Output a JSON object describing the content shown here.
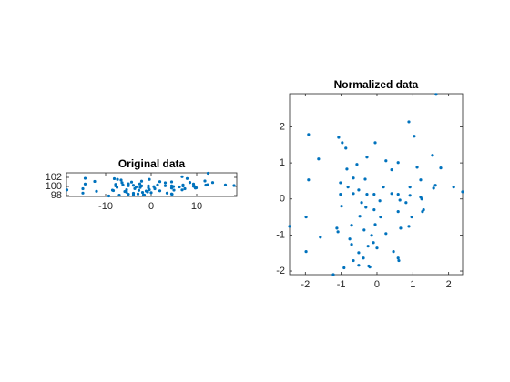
{
  "chart_data": [
    {
      "type": "scatter",
      "title": "Original data",
      "color": "#0072bd",
      "xlim": [
        -18.6,
        18.8
      ],
      "ylim": [
        97.8,
        103
      ],
      "xticks": [
        -10,
        0,
        10
      ],
      "yticks": [
        98,
        100,
        102
      ],
      "x": [
        12.5,
        6.8,
        -14.5,
        7.9,
        -8.1,
        -7.4,
        -0.4,
        -6.6,
        -2.1,
        11.8,
        -12.4,
        1.9,
        -4.3,
        4.5,
        -6.4,
        3.1,
        8.5,
        13.5,
        -14.5,
        -7.8,
        -5.0,
        -2.5,
        9.3,
        -6.2,
        -3.9,
        1.4,
        7.0,
        12.4,
        16.3,
        18.2,
        -7.8,
        -5.0,
        -2.1,
        -0.6,
        3.1,
        4.5,
        7.0,
        9.3,
        12.0,
        -3.3,
        0.6,
        4.9,
        6.2,
        9.5,
        -7.5,
        -2.4,
        -0.6,
        4.5,
        9.7,
        -3.6,
        0.8,
        7.4,
        9.9,
        -15.0,
        -18.5,
        -8.5,
        -5.4,
        -2.7,
        -0.4,
        5.0,
        6.8,
        -8.3,
        -5.8,
        -1.1,
        1.9,
        -12.0,
        -0.8,
        -5.4,
        -1.9,
        0,
        -3.9,
        -15.0,
        -2.9,
        3.5,
        4.5,
        -5.0,
        -3.9,
        -7.0,
        -1.7,
        -1.5,
        4.6,
        -9.3
      ],
      "values": [
        102.9,
        102.14,
        101.79,
        101.74,
        101.71,
        101.56,
        101.56,
        101.41,
        101.16,
        101.21,
        101.11,
        101.06,
        100.96,
        101.01,
        100.83,
        100.81,
        100.88,
        100.86,
        100.53,
        100.45,
        100.58,
        100.55,
        100.53,
        100.33,
        100.25,
        100.33,
        100.33,
        100.38,
        100.33,
        100.2,
        100.13,
        100.15,
        100.13,
        100.13,
        100.15,
        100.13,
        100.1,
        100.05,
        100.3,
        99.9,
        99.95,
        99.97,
        99.9,
        100,
        99.8,
        99.77,
        99.7,
        99.65,
        99.65,
        99.52,
        99.5,
        99.5,
        99.7,
        99.5,
        99.24,
        99.19,
        99.27,
        99.14,
        99.29,
        99.19,
        99.24,
        99.09,
        98.89,
        98.99,
        99.04,
        98.94,
        98.79,
        98.74,
        98.69,
        98.64,
        98.51,
        98.54,
        98.36,
        98.54,
        98.36,
        98.29,
        98.16,
        98.09,
        98.14,
        98.11,
        98.29,
        97.9
      ]
    },
    {
      "type": "scatter",
      "title": "Normalized data",
      "color": "#0072bd",
      "xlim": [
        -2.44,
        2.39
      ],
      "ylim": [
        -2.1,
        2.92
      ],
      "xticks": [
        -2,
        -1,
        0,
        1,
        2
      ],
      "yticks": [
        -2,
        -1,
        0,
        1,
        2
      ],
      "x": [
        1.65,
        0.89,
        -1.91,
        1.04,
        -1.07,
        -0.97,
        -0.05,
        -0.87,
        -0.28,
        1.55,
        -1.63,
        0.25,
        -0.56,
        0.59,
        -0.84,
        0.41,
        1.12,
        1.78,
        -1.91,
        -1.02,
        -0.66,
        -0.33,
        1.22,
        -0.81,
        -0.51,
        0.18,
        0.92,
        1.63,
        2.14,
        2.39,
        -1.02,
        -0.66,
        -0.28,
        -0.08,
        0.41,
        0.59,
        0.92,
        1.22,
        1.58,
        -0.43,
        0.08,
        0.64,
        0.81,
        1.25,
        -0.99,
        -0.31,
        -0.08,
        0.59,
        1.27,
        -0.48,
        0.1,
        0.97,
        1.3,
        -1.98,
        -2.44,
        -1.12,
        -0.71,
        -0.36,
        -0.05,
        0.66,
        0.89,
        -1.09,
        -0.76,
        -0.15,
        0.25,
        -1.58,
        -0.1,
        -0.71,
        -0.25,
        0,
        -0.51,
        -1.98,
        -0.38,
        0.46,
        0.59,
        -0.66,
        -0.51,
        -0.92,
        -0.23,
        -0.2,
        0.61,
        -1.22
      ],
      "values": [
        2.9,
        2.14,
        1.79,
        1.74,
        1.71,
        1.56,
        1.56,
        1.41,
        1.16,
        1.21,
        1.11,
        1.06,
        0.96,
        1.01,
        0.83,
        0.81,
        0.88,
        0.86,
        0.53,
        0.45,
        0.58,
        0.55,
        0.53,
        0.33,
        0.25,
        0.33,
        0.33,
        0.38,
        0.33,
        0.2,
        0.13,
        0.15,
        0.13,
        0.13,
        0.15,
        0.13,
        0.1,
        0.05,
        0.3,
        -0.1,
        -0.05,
        -0.03,
        -0.1,
        0,
        -0.2,
        -0.23,
        -0.3,
        -0.35,
        -0.35,
        -0.48,
        -0.5,
        -0.5,
        -0.3,
        -0.5,
        -0.76,
        -0.81,
        -0.73,
        -0.86,
        -0.71,
        -0.81,
        -0.76,
        -0.91,
        -1.11,
        -1.01,
        -0.96,
        -1.06,
        -1.21,
        -1.26,
        -1.31,
        -1.36,
        -1.49,
        -1.46,
        -1.64,
        -1.46,
        -1.64,
        -1.71,
        -1.84,
        -1.91,
        -1.86,
        -1.89,
        -1.71,
        -2.1
      ]
    }
  ]
}
